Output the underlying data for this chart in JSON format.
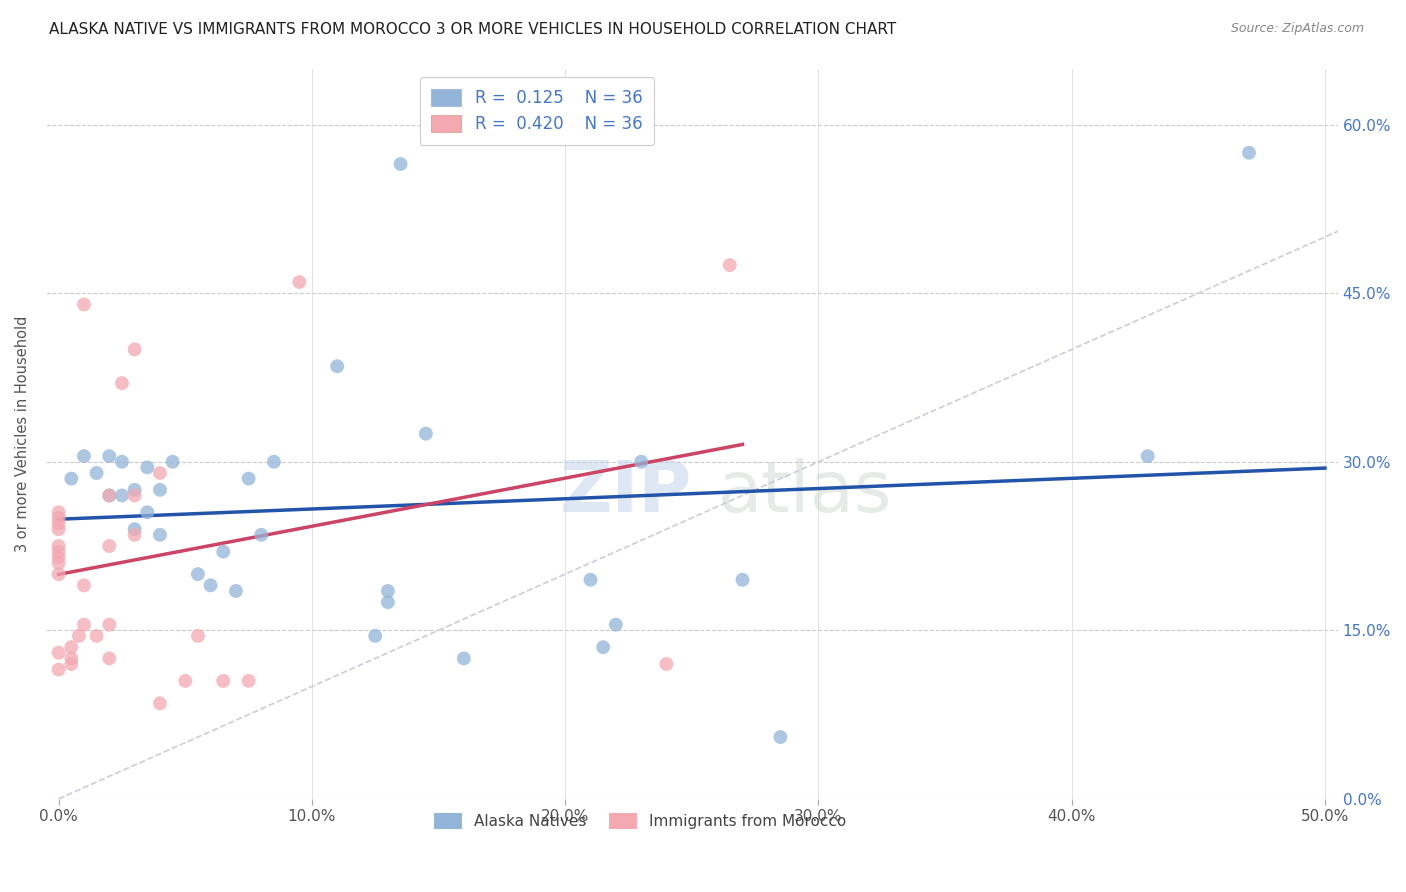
{
  "title": "ALASKA NATIVE VS IMMIGRANTS FROM MOROCCO 3 OR MORE VEHICLES IN HOUSEHOLD CORRELATION CHART",
  "source": "Source: ZipAtlas.com",
  "ylabel": "3 or more Vehicles in Household",
  "watermark_zip": "ZIP",
  "watermark_atlas": "atlas",
  "legend_label1": "Alaska Natives",
  "legend_label2": "Immigrants from Morocco",
  "R1": "0.125",
  "N1": "36",
  "R2": "0.420",
  "N2": "36",
  "color_blue": "#92B4D8",
  "color_pink": "#F4A8B0",
  "line_color_blue": "#2255AA",
  "line_color_pink": "#CC4466",
  "line_color_diag": "#CCCCDD",
  "xlim": [
    0.0,
    0.5
  ],
  "ylim": [
    0.0,
    0.65
  ],
  "xtick_vals": [
    0.0,
    0.1,
    0.2,
    0.3,
    0.4,
    0.5
  ],
  "ytick_vals": [
    0.0,
    0.15,
    0.3,
    0.45,
    0.6
  ],
  "alaska_x": [
    0.005,
    0.01,
    0.015,
    0.02,
    0.02,
    0.025,
    0.025,
    0.03,
    0.03,
    0.035,
    0.035,
    0.04,
    0.04,
    0.045,
    0.055,
    0.06,
    0.065,
    0.07,
    0.075,
    0.08,
    0.085,
    0.11,
    0.125,
    0.13,
    0.13,
    0.135,
    0.145,
    0.16,
    0.21,
    0.215,
    0.22,
    0.23,
    0.27,
    0.285,
    0.43,
    0.47
  ],
  "alaska_y": [
    0.285,
    0.305,
    0.29,
    0.27,
    0.305,
    0.27,
    0.3,
    0.24,
    0.275,
    0.255,
    0.295,
    0.235,
    0.275,
    0.3,
    0.2,
    0.19,
    0.22,
    0.185,
    0.285,
    0.235,
    0.3,
    0.385,
    0.145,
    0.175,
    0.185,
    0.565,
    0.325,
    0.125,
    0.195,
    0.135,
    0.155,
    0.3,
    0.195,
    0.055,
    0.305,
    0.575
  ],
  "morocco_x": [
    0.0,
    0.0,
    0.0,
    0.0,
    0.0,
    0.0,
    0.0,
    0.0,
    0.0,
    0.0,
    0.0,
    0.005,
    0.005,
    0.005,
    0.008,
    0.01,
    0.01,
    0.01,
    0.015,
    0.02,
    0.02,
    0.02,
    0.02,
    0.025,
    0.03,
    0.03,
    0.03,
    0.04,
    0.04,
    0.05,
    0.055,
    0.065,
    0.075,
    0.095,
    0.24,
    0.265
  ],
  "morocco_y": [
    0.2,
    0.21,
    0.215,
    0.22,
    0.225,
    0.24,
    0.245,
    0.25,
    0.255,
    0.115,
    0.13,
    0.12,
    0.125,
    0.135,
    0.145,
    0.155,
    0.19,
    0.44,
    0.145,
    0.125,
    0.155,
    0.225,
    0.27,
    0.37,
    0.235,
    0.27,
    0.4,
    0.085,
    0.29,
    0.105,
    0.145,
    0.105,
    0.105,
    0.46,
    0.12,
    0.475
  ]
}
